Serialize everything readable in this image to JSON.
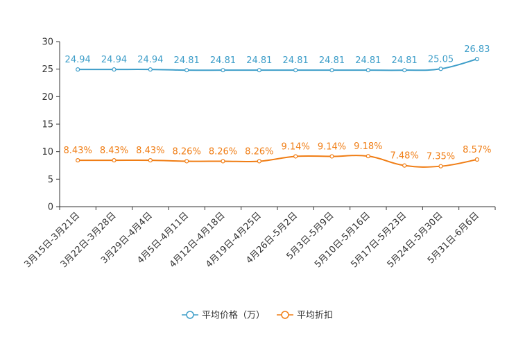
{
  "chart_data": {
    "type": "line",
    "categories": [
      "3月15日-3月21日",
      "3月22日-3月28日",
      "3月29日-4月4日",
      "4月5日-4月11日",
      "4月12日-4月18日",
      "4月19日-4月25日",
      "4月26日-5月2日",
      "5月3日-5月9日",
      "5月10日-5月16日",
      "5月17日-5月23日",
      "5月24日-5月30日",
      "5月31日-6月6日"
    ],
    "ylim": [
      0,
      30
    ],
    "yticks": [
      0,
      5,
      10,
      15,
      20,
      25,
      30
    ],
    "series": [
      {
        "name": "平均价格（万）",
        "color": "#3e9ec9",
        "values": [
          24.94,
          24.94,
          24.94,
          24.81,
          24.81,
          24.81,
          24.81,
          24.81,
          24.81,
          24.81,
          25.05,
          26.83
        ],
        "labels": [
          "24.94",
          "24.94",
          "24.94",
          "24.81",
          "24.81",
          "24.81",
          "24.81",
          "24.81",
          "24.81",
          "24.81",
          "25.05",
          "26.83"
        ]
      },
      {
        "name": "平均折扣",
        "color": "#f07d14",
        "values": [
          8.43,
          8.43,
          8.43,
          8.26,
          8.26,
          8.26,
          9.14,
          9.14,
          9.18,
          7.48,
          7.35,
          8.57
        ],
        "labels": [
          "8.43%",
          "8.43%",
          "8.43%",
          "8.26%",
          "8.26%",
          "8.26%",
          "9.14%",
          "9.14%",
          "9.18%",
          "7.48%",
          "7.35%",
          "8.57%"
        ]
      }
    ],
    "legend_position": "bottom-center",
    "grid": false
  }
}
